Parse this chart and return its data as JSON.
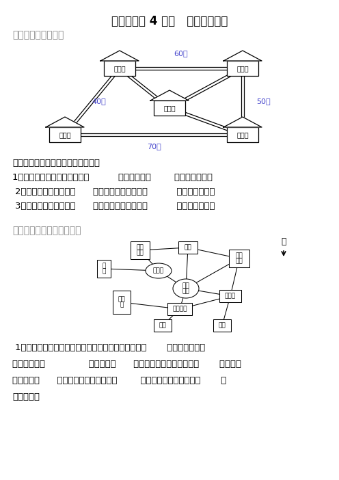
{
  "title": "第一单元第 4 课时   简单的路线图",
  "section1_title": "一、看图回答问题。",
  "section2_title": "二、根据路线图回答问题。",
  "pig_question": "小猪要到小猴家玩，它可以怎么走？",
  "q1": "1．小猪从家出发，向南走到（          ）家，再向（        ）走到小猴家。",
  "q2": "2．小猪从家出发，向（      ）走到小狗家，再向（          ）走到小猴家。",
  "q3": "3．小猪从家出发，向（      ）走到小兔家，再向（          ）走到小猴家。",
  "park_q1": "1．张明从南门进入公园，先走到音乐喷泉，然后向（       ）走到四季亭，",
  "park_q2": "再向北走到（               ），再向（      ）走到艺术广场，接着向（       ）走到竹",
  "park_q3": "林，再向（      ）走到儿童公园，再向（        ）走到盆景园，最后向（       ）",
  "park_q4": "走到西门。",
  "background": "#ffffff",
  "text_color": "#000000",
  "dist_color": "#4444cc",
  "section_color": "#888888"
}
